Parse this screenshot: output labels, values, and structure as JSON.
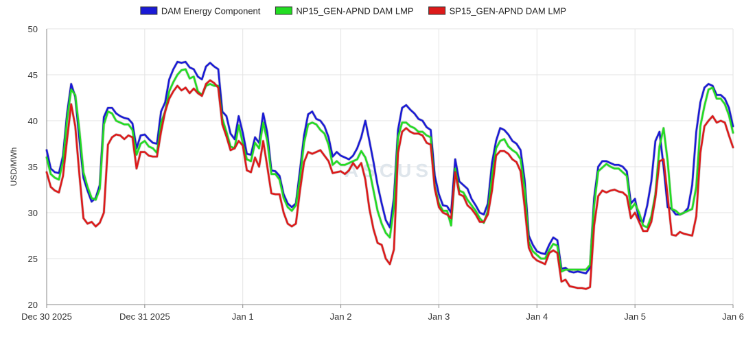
{
  "watermark": "ASCUS",
  "chart_data": {
    "type": "line",
    "title": "",
    "ylabel": "USD/MWh",
    "xlabel": "",
    "ylim": [
      20,
      50
    ],
    "yticks": [
      20,
      25,
      30,
      35,
      40,
      45,
      50
    ],
    "xlim": [
      0,
      7
    ],
    "xticks": [
      {
        "pos": 0,
        "label": "Dec 30 2025"
      },
      {
        "pos": 1,
        "label": "Dec 31 2025"
      },
      {
        "pos": 2,
        "label": "Jan 1"
      },
      {
        "pos": 3,
        "label": "Jan 2"
      },
      {
        "pos": 4,
        "label": "Jan 3"
      },
      {
        "pos": 5,
        "label": "Jan 4"
      },
      {
        "pos": 6,
        "label": "Jan 5"
      },
      {
        "pos": 7,
        "label": "Jan 6"
      }
    ],
    "grid": true,
    "legend_position": "top-center",
    "series": [
      {
        "name": "DAM Energy Component",
        "color": "#1a1ad6",
        "values": [
          36.8,
          34.8,
          34.4,
          34.3,
          36.2,
          40.8,
          44.0,
          42.6,
          38.0,
          33.8,
          32.4,
          31.2,
          31.6,
          33.0,
          40.4,
          41.4,
          41.4,
          40.8,
          40.5,
          40.3,
          40.2,
          39.7,
          37.0,
          38.4,
          38.5,
          38.0,
          37.6,
          37.5,
          41.0,
          42.0,
          44.5,
          45.6,
          46.4,
          46.3,
          46.4,
          45.8,
          45.6,
          44.8,
          44.5,
          45.9,
          46.3,
          45.9,
          45.6,
          41.0,
          40.5,
          38.6,
          38.0,
          40.5,
          38.7,
          36.4,
          36.3,
          38.2,
          37.6,
          40.8,
          38.7,
          34.6,
          34.5,
          34.0,
          32.0,
          31.0,
          30.6,
          31.0,
          34.6,
          38.4,
          40.7,
          41.0,
          40.2,
          40.0,
          39.4,
          38.2,
          36.1,
          36.6,
          36.2,
          36.0,
          35.8,
          36.2,
          37.0,
          38.2,
          40.0,
          37.8,
          35.5,
          33.0,
          31.0,
          29.2,
          28.4,
          31.6,
          39.0,
          41.4,
          41.7,
          41.2,
          40.8,
          40.2,
          40.0,
          39.3,
          39.0,
          34.0,
          32.0,
          30.8,
          30.7,
          30.0,
          35.8,
          33.4,
          33.0,
          32.6,
          31.5,
          30.8,
          30.0,
          29.8,
          31.0,
          35.4,
          37.8,
          39.2,
          39.0,
          38.5,
          37.8,
          37.5,
          36.8,
          33.5,
          27.5,
          26.5,
          25.8,
          25.6,
          25.5,
          26.5,
          27.3,
          27.0,
          23.9,
          24.0,
          23.6,
          23.5,
          23.6,
          23.5,
          23.4,
          24.0,
          31.6,
          35.0,
          35.6,
          35.6,
          35.4,
          35.2,
          35.2,
          35.0,
          34.5,
          31.0,
          31.5,
          29.2,
          29.0,
          30.8,
          33.4,
          37.8,
          38.8,
          35.0,
          30.6,
          30.4,
          29.8,
          29.8,
          30.0,
          30.5,
          33.0,
          38.8,
          42.0,
          43.6,
          44.0,
          43.8,
          42.8,
          42.8,
          42.4,
          41.4,
          39.4
        ]
      },
      {
        "name": "NP15_GEN-APND DAM LMP",
        "color": "#22dd22",
        "values": [
          36.0,
          34.2,
          33.8,
          33.6,
          35.6,
          40.2,
          43.4,
          42.8,
          39.0,
          34.4,
          32.8,
          31.6,
          31.4,
          32.6,
          39.6,
          41.0,
          40.8,
          40.0,
          39.8,
          39.6,
          39.6,
          39.0,
          36.3,
          37.5,
          37.8,
          37.2,
          37.0,
          36.5,
          39.8,
          41.0,
          43.2,
          44.2,
          45.0,
          45.5,
          45.6,
          44.6,
          44.8,
          43.2,
          42.8,
          43.8,
          44.0,
          43.8,
          43.8,
          40.2,
          38.8,
          37.2,
          37.0,
          39.5,
          37.6,
          35.8,
          35.6,
          37.6,
          37.0,
          39.8,
          37.8,
          34.2,
          34.2,
          33.6,
          31.6,
          30.6,
          30.2,
          30.8,
          33.8,
          37.6,
          39.6,
          39.8,
          39.6,
          39.0,
          38.6,
          37.4,
          35.2,
          35.6,
          35.2,
          35.2,
          35.4,
          35.6,
          35.8,
          36.7,
          36.0,
          34.6,
          32.4,
          30.2,
          28.8,
          27.8,
          27.3,
          30.6,
          38.2,
          39.8,
          39.8,
          39.4,
          39.2,
          38.8,
          38.8,
          38.4,
          38.2,
          32.8,
          31.0,
          30.2,
          30.2,
          28.6,
          34.8,
          32.4,
          32.2,
          31.4,
          30.8,
          30.2,
          29.4,
          28.9,
          30.2,
          34.0,
          37.0,
          37.8,
          38.0,
          37.2,
          36.8,
          36.5,
          35.8,
          32.6,
          26.8,
          25.8,
          25.4,
          25.0,
          25.0,
          25.9,
          26.6,
          26.4,
          23.6,
          23.8,
          23.8,
          23.8,
          23.8,
          23.8,
          23.8,
          24.3,
          30.8,
          34.5,
          34.9,
          35.3,
          35.0,
          34.8,
          34.8,
          34.4,
          34.0,
          30.4,
          31.0,
          30.0,
          28.6,
          28.4,
          29.6,
          32.0,
          37.2,
          39.2,
          35.6,
          30.4,
          30.2,
          29.8,
          30.0,
          30.2,
          30.4,
          32.8,
          39.4,
          41.6,
          43.4,
          43.6,
          42.4,
          42.4,
          41.8,
          40.6,
          38.7
        ]
      },
      {
        "name": "SP15_GEN-APND DAM LMP",
        "color": "#dd1a1a",
        "values": [
          34.4,
          32.8,
          32.4,
          32.2,
          34.0,
          38.0,
          41.8,
          39.4,
          34.2,
          29.4,
          28.8,
          29.0,
          28.5,
          28.9,
          30.0,
          37.4,
          38.2,
          38.5,
          38.4,
          38.0,
          38.4,
          38.2,
          34.8,
          36.6,
          36.6,
          36.2,
          36.1,
          36.1,
          38.8,
          41.0,
          42.4,
          43.2,
          43.8,
          43.3,
          43.6,
          43.0,
          43.5,
          43.0,
          42.7,
          44.0,
          44.4,
          44.1,
          43.6,
          39.6,
          38.3,
          36.8,
          37.0,
          37.8,
          37.3,
          34.6,
          34.4,
          36.0,
          35.0,
          37.8,
          35.0,
          32.1,
          32.0,
          32.0,
          30.0,
          28.8,
          28.5,
          28.8,
          32.4,
          35.5,
          36.6,
          36.4,
          36.6,
          36.8,
          36.2,
          35.6,
          34.3,
          34.4,
          34.5,
          34.2,
          34.6,
          35.4,
          34.8,
          35.4,
          33.6,
          30.4,
          28.2,
          26.7,
          26.5,
          25.0,
          24.4,
          26.0,
          36.5,
          38.8,
          39.2,
          38.8,
          38.6,
          38.6,
          38.4,
          37.6,
          37.4,
          32.6,
          30.6,
          30.0,
          29.8,
          29.4,
          34.4,
          32.0,
          31.8,
          30.8,
          30.4,
          29.8,
          29.0,
          29.0,
          29.8,
          32.4,
          36.2,
          36.7,
          36.7,
          36.4,
          35.8,
          35.5,
          34.5,
          30.6,
          26.2,
          25.2,
          24.8,
          24.6,
          24.4,
          25.6,
          25.9,
          25.6,
          22.5,
          22.7,
          22.0,
          21.9,
          21.8,
          21.8,
          21.7,
          21.9,
          28.6,
          31.8,
          32.4,
          32.2,
          32.4,
          32.5,
          32.3,
          32.2,
          31.8,
          29.4,
          30.0,
          29.0,
          28.0,
          28.0,
          29.0,
          31.6,
          35.6,
          35.8,
          31.8,
          27.6,
          27.5,
          27.9,
          27.7,
          27.6,
          27.5,
          29.6,
          36.5,
          39.4,
          40.0,
          40.5,
          39.8,
          40.0,
          39.8,
          38.4,
          37.1
        ]
      }
    ]
  }
}
